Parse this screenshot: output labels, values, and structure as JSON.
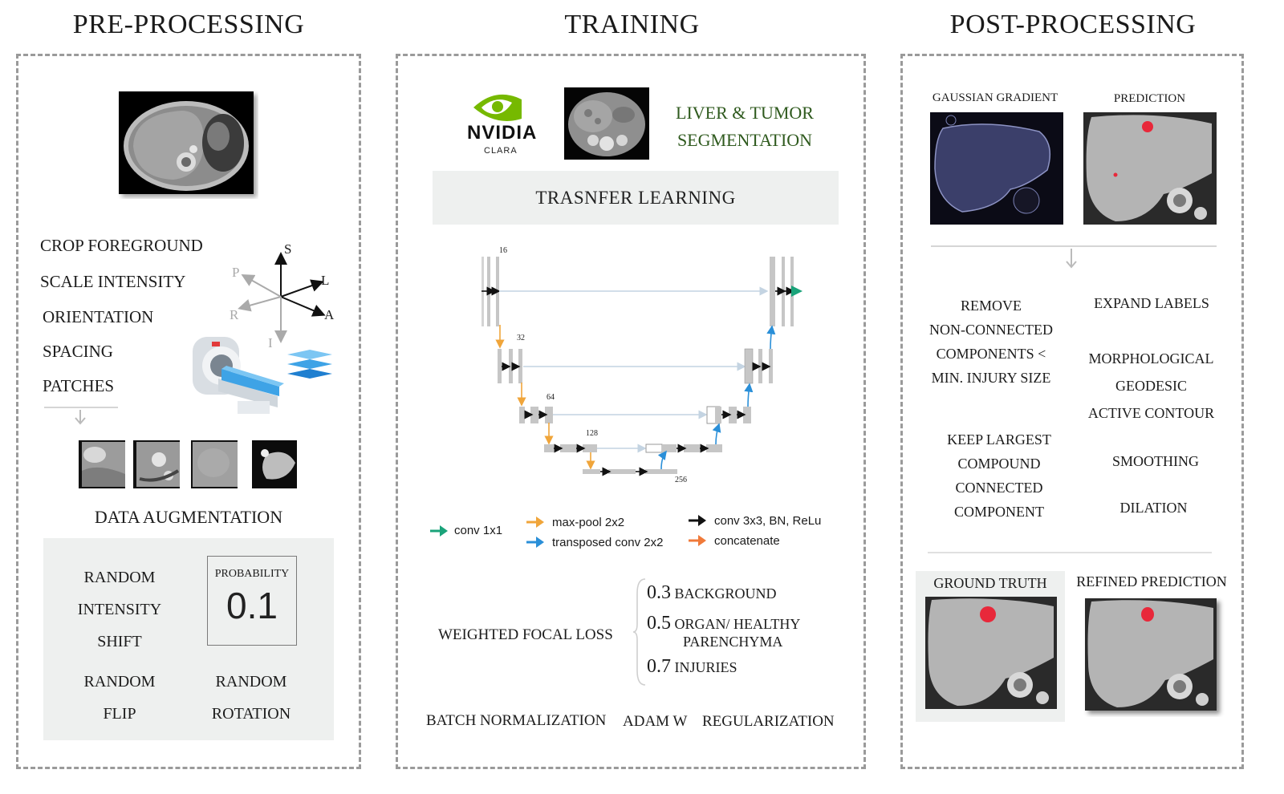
{
  "sections": {
    "pre": "PRE-PROCESSING",
    "train": "TRAINING",
    "post": "POST-PROCESSING"
  },
  "pre": {
    "steps": [
      "CROP FOREGROUND",
      "SCALE INTENSITY",
      "ORIENTATION",
      "SPACING",
      "PATCHES"
    ],
    "axes": {
      "s": "S",
      "l": "L",
      "p": "P",
      "r": "R",
      "a": "A",
      "i": "I"
    },
    "augmentation_title": "DATA AUGMENTATION",
    "aug": {
      "shift": [
        "RANDOM",
        "INTENSITY",
        "SHIFT"
      ],
      "probability_label": "PROBABILITY",
      "probability_value": "0.1",
      "flip": [
        "RANDOM",
        "FLIP"
      ],
      "rotation": [
        "RANDOM",
        "ROTATION"
      ]
    }
  },
  "train": {
    "brand": "NVIDIA",
    "brand_sub": "CLARA",
    "task": [
      "LIVER & TUMOR",
      "SEGMENTATION"
    ],
    "transfer": "TRASNFER LEARNING",
    "unet_labels": {
      "c16": "16",
      "c32": "32",
      "c64": "64",
      "c128": "128",
      "c256": "256"
    },
    "legend": {
      "conv1x1": "conv 1x1",
      "maxpool": "max-pool 2x2",
      "transposed": "transposed conv 2x2",
      "conv3x3": "conv 3x3, BN, ReLu",
      "concat": "concatenate"
    },
    "loss_label": "WEIGHTED FOCAL LOSS",
    "weights": [
      {
        "value": "0.3",
        "label": "BACKGROUND"
      },
      {
        "value": "0.5",
        "label": "ORGAN/ HEALTHY",
        "label2": "PARENCHYMA"
      },
      {
        "value": "0.7",
        "label": "INJURIES"
      }
    ],
    "bottom": [
      "BATCH NORMALIZATION",
      "ADAM W",
      "REGULARIZATION"
    ]
  },
  "post": {
    "gaussian": "GAUSSIAN GRADIENT",
    "prediction": "PREDICTION",
    "remove": [
      "REMOVE",
      "NON-CONNECTED",
      "COMPONENTS <",
      "MIN. INJURY SIZE"
    ],
    "expand": "EXPAND LABELS",
    "morph": [
      "MORPHOLOGICAL",
      "GEODESIC",
      "ACTIVE CONTOUR"
    ],
    "keep": [
      "KEEP LARGEST",
      "COMPOUND",
      "CONNECTED",
      "COMPONENT"
    ],
    "smoothing": "SMOOTHING",
    "dilation": "DILATION",
    "ground_truth": "GROUND TRUTH",
    "refined": "REFINED PREDICTION"
  },
  "colors": {
    "green_text": "#2f5a1e",
    "nvidia_green": "#76b900",
    "arrow_green": "#1aa37a",
    "arrow_orange": "#f0a53a",
    "arrow_blue": "#2a8fd8",
    "lesion_red": "#e8283a"
  }
}
